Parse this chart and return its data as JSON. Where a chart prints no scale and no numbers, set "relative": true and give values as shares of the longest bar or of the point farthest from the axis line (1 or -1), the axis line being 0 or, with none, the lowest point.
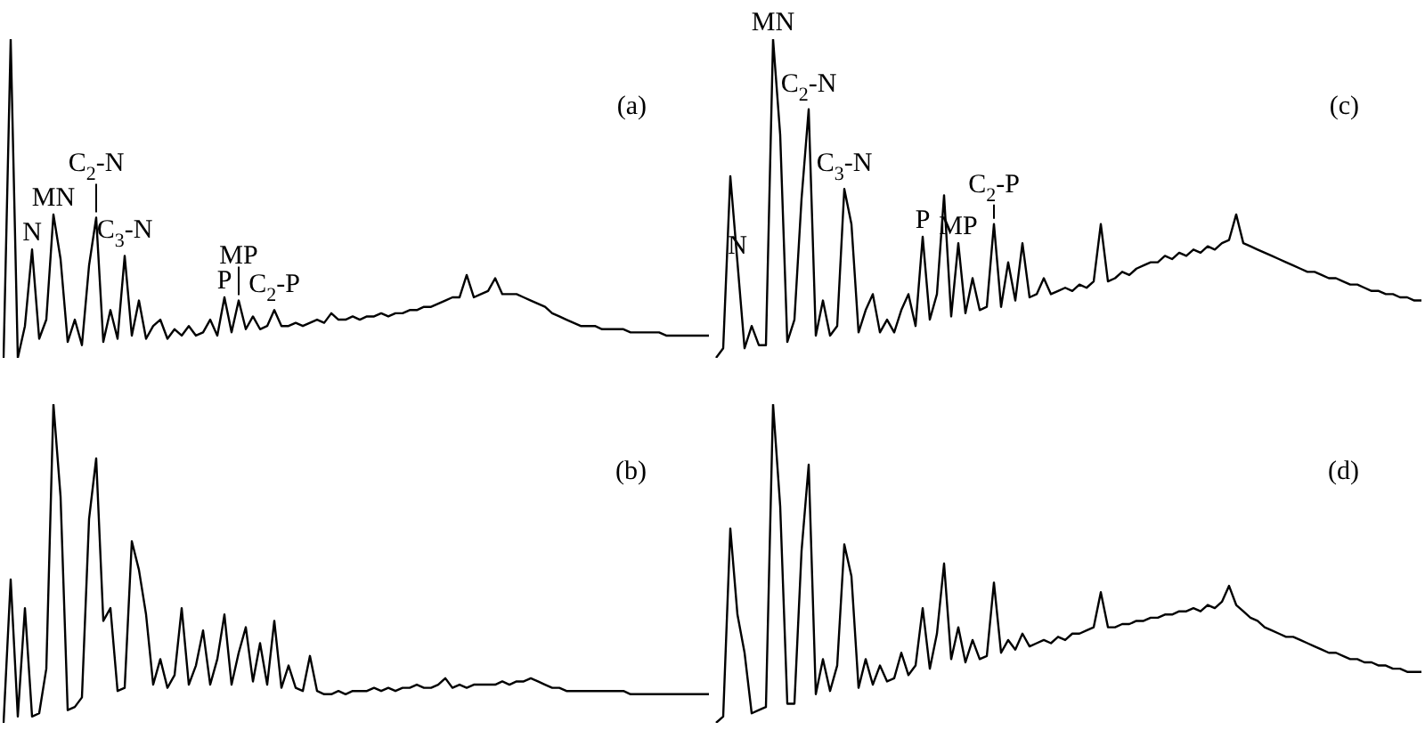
{
  "chart_data": [
    {
      "type": "line",
      "title": "(a)",
      "relative": true,
      "tick_labels": false,
      "color": "#000000",
      "categories": [
        null,
        null,
        null,
        null,
        null,
        null,
        null,
        null,
        null,
        null,
        null,
        null,
        null,
        null,
        null,
        null,
        null,
        null,
        null,
        null,
        null,
        null,
        null,
        null,
        null,
        null,
        null,
        null,
        null,
        null,
        null,
        null,
        null,
        null,
        null,
        null,
        null,
        null,
        null,
        null,
        null,
        null,
        null,
        null,
        null,
        null,
        null,
        null,
        null,
        null,
        null,
        null,
        null,
        null,
        null,
        null,
        null,
        null,
        null,
        null,
        null,
        null,
        null,
        null,
        null,
        null,
        null,
        null,
        null,
        null,
        null,
        null,
        null,
        null,
        null,
        null,
        null,
        null,
        null,
        null,
        null,
        null,
        null,
        null,
        null,
        null,
        null,
        null,
        null,
        null,
        null,
        null,
        null,
        null,
        null,
        null,
        null,
        null,
        null,
        null
      ],
      "values": [
        0,
        1.0,
        0,
        0.1,
        0.34,
        0.06,
        0.12,
        0.45,
        0.31,
        0.05,
        0.12,
        0.04,
        0.29,
        0.44,
        0.05,
        0.15,
        0.06,
        0.32,
        0.07,
        0.18,
        0.06,
        0.1,
        0.12,
        0.06,
        0.09,
        0.07,
        0.1,
        0.07,
        0.08,
        0.12,
        0.07,
        0.19,
        0.08,
        0.18,
        0.09,
        0.13,
        0.09,
        0.1,
        0.15,
        0.1,
        0.1,
        0.11,
        0.1,
        0.11,
        0.12,
        0.11,
        0.14,
        0.12,
        0.12,
        0.13,
        0.12,
        0.13,
        0.13,
        0.14,
        0.13,
        0.14,
        0.14,
        0.15,
        0.15,
        0.16,
        0.16,
        0.17,
        0.18,
        0.19,
        0.19,
        0.26,
        0.19,
        0.2,
        0.21,
        0.25,
        0.2,
        0.2,
        0.2,
        0.19,
        0.18,
        0.17,
        0.16,
        0.14,
        0.13,
        0.12,
        0.11,
        0.1,
        0.1,
        0.1,
        0.09,
        0.09,
        0.09,
        0.09,
        0.08,
        0.08,
        0.08,
        0.08,
        0.08,
        0.07,
        0.07,
        0.07,
        0.07,
        0.07,
        0.07,
        0.07
      ],
      "annotations": [
        {
          "text": "N",
          "y": 0.34
        },
        {
          "text": "MN",
          "y": 0.45
        },
        {
          "text": "C$_{2}$-N",
          "y": 0.44
        },
        {
          "text": "C$_{3}$-N",
          "y": 0.32
        },
        {
          "text": "P",
          "y": 0.19
        },
        {
          "text": "MP",
          "y": 0.18
        },
        {
          "text": "C$_{2}$-P",
          "y": 0.15
        }
      ]
    },
    {
      "type": "line",
      "title": "(c)",
      "relative": true,
      "tick_labels": false,
      "color": "#000000",
      "categories": [
        null,
        null,
        null,
        null,
        null,
        null,
        null,
        null,
        null,
        null,
        null,
        null,
        null,
        null,
        null,
        null,
        null,
        null,
        null,
        null,
        null,
        null,
        null,
        null,
        null,
        null,
        null,
        null,
        null,
        null,
        null,
        null,
        null,
        null,
        null,
        null,
        null,
        null,
        null,
        null,
        null,
        null,
        null,
        null,
        null,
        null,
        null,
        null,
        null,
        null,
        null,
        null,
        null,
        null,
        null,
        null,
        null,
        null,
        null,
        null,
        null,
        null,
        null,
        null,
        null,
        null,
        null,
        null,
        null,
        null,
        null,
        null,
        null,
        null,
        null,
        null,
        null,
        null,
        null,
        null,
        null,
        null,
        null,
        null,
        null,
        null,
        null,
        null,
        null,
        null,
        null,
        null,
        null,
        null,
        null,
        null,
        null,
        null,
        null,
        null
      ],
      "values": [
        0,
        0.03,
        0.57,
        0.3,
        0.03,
        0.1,
        0.04,
        0.04,
        1.0,
        0.7,
        0.05,
        0.12,
        0.5,
        0.78,
        0.07,
        0.18,
        0.07,
        0.1,
        0.53,
        0.42,
        0.08,
        0.15,
        0.2,
        0.08,
        0.12,
        0.08,
        0.15,
        0.2,
        0.1,
        0.38,
        0.12,
        0.2,
        0.51,
        0.13,
        0.36,
        0.14,
        0.25,
        0.15,
        0.16,
        0.42,
        0.16,
        0.3,
        0.18,
        0.36,
        0.19,
        0.2,
        0.25,
        0.2,
        0.21,
        0.22,
        0.21,
        0.23,
        0.22,
        0.24,
        0.42,
        0.24,
        0.25,
        0.27,
        0.26,
        0.28,
        0.29,
        0.3,
        0.3,
        0.32,
        0.31,
        0.33,
        0.32,
        0.34,
        0.33,
        0.35,
        0.34,
        0.36,
        0.37,
        0.45,
        0.36,
        0.35,
        0.34,
        0.33,
        0.32,
        0.31,
        0.3,
        0.29,
        0.28,
        0.27,
        0.27,
        0.26,
        0.25,
        0.25,
        0.24,
        0.23,
        0.23,
        0.22,
        0.21,
        0.21,
        0.2,
        0.2,
        0.19,
        0.19,
        0.18,
        0.18
      ],
      "annotations": [
        {
          "text": "N",
          "y": 0.3
        },
        {
          "text": "MN",
          "y": 1.0
        },
        {
          "text": "C$_{2}$-N",
          "y": 0.78
        },
        {
          "text": "C$_{3}$-N",
          "y": 0.53
        },
        {
          "text": "P",
          "y": 0.38
        },
        {
          "text": "MP",
          "y": 0.36
        },
        {
          "text": "C$_{2}$-P",
          "y": 0.42
        }
      ]
    },
    {
      "type": "line",
      "title": "(b)",
      "relative": true,
      "tick_labels": false,
      "color": "#000000",
      "categories": [
        null,
        null,
        null,
        null,
        null,
        null,
        null,
        null,
        null,
        null,
        null,
        null,
        null,
        null,
        null,
        null,
        null,
        null,
        null,
        null,
        null,
        null,
        null,
        null,
        null,
        null,
        null,
        null,
        null,
        null,
        null,
        null,
        null,
        null,
        null,
        null,
        null,
        null,
        null,
        null,
        null,
        null,
        null,
        null,
        null,
        null,
        null,
        null,
        null,
        null,
        null,
        null,
        null,
        null,
        null,
        null,
        null,
        null,
        null,
        null,
        null,
        null,
        null,
        null,
        null,
        null,
        null,
        null,
        null,
        null,
        null,
        null,
        null,
        null,
        null,
        null,
        null,
        null,
        null,
        null,
        null,
        null,
        null,
        null,
        null,
        null,
        null,
        null,
        null,
        null,
        null,
        null,
        null,
        null,
        null,
        null,
        null,
        null,
        null,
        null
      ],
      "values": [
        0,
        0.45,
        0.02,
        0.36,
        0.02,
        0.03,
        0.17,
        1.0,
        0.71,
        0.04,
        0.05,
        0.08,
        0.64,
        0.83,
        0.32,
        0.36,
        0.1,
        0.11,
        0.57,
        0.48,
        0.34,
        0.12,
        0.2,
        0.11,
        0.15,
        0.36,
        0.12,
        0.18,
        0.29,
        0.12,
        0.2,
        0.34,
        0.12,
        0.22,
        0.3,
        0.13,
        0.25,
        0.12,
        0.32,
        0.11,
        0.18,
        0.11,
        0.1,
        0.21,
        0.1,
        0.09,
        0.09,
        0.1,
        0.09,
        0.1,
        0.1,
        0.1,
        0.11,
        0.1,
        0.11,
        0.1,
        0.11,
        0.11,
        0.12,
        0.11,
        0.11,
        0.12,
        0.14,
        0.11,
        0.12,
        0.11,
        0.12,
        0.12,
        0.12,
        0.12,
        0.13,
        0.12,
        0.13,
        0.13,
        0.14,
        0.13,
        0.12,
        0.11,
        0.11,
        0.1,
        0.1,
        0.1,
        0.1,
        0.1,
        0.1,
        0.1,
        0.1,
        0.1,
        0.09,
        0.09,
        0.09,
        0.09,
        0.09,
        0.09,
        0.09,
        0.09,
        0.09,
        0.09,
        0.09,
        0.09
      ]
    },
    {
      "type": "line",
      "title": "(d)",
      "relative": true,
      "tick_labels": false,
      "color": "#000000",
      "categories": [
        null,
        null,
        null,
        null,
        null,
        null,
        null,
        null,
        null,
        null,
        null,
        null,
        null,
        null,
        null,
        null,
        null,
        null,
        null,
        null,
        null,
        null,
        null,
        null,
        null,
        null,
        null,
        null,
        null,
        null,
        null,
        null,
        null,
        null,
        null,
        null,
        null,
        null,
        null,
        null,
        null,
        null,
        null,
        null,
        null,
        null,
        null,
        null,
        null,
        null,
        null,
        null,
        null,
        null,
        null,
        null,
        null,
        null,
        null,
        null,
        null,
        null,
        null,
        null,
        null,
        null,
        null,
        null,
        null,
        null,
        null,
        null,
        null,
        null,
        null,
        null,
        null,
        null,
        null,
        null,
        null,
        null,
        null,
        null,
        null,
        null,
        null,
        null,
        null,
        null,
        null,
        null,
        null,
        null,
        null,
        null,
        null,
        null,
        null,
        null
      ],
      "values": [
        0,
        0.02,
        0.61,
        0.34,
        0.22,
        0.03,
        0.04,
        0.05,
        1.0,
        0.68,
        0.06,
        0.06,
        0.54,
        0.81,
        0.09,
        0.2,
        0.1,
        0.18,
        0.56,
        0.46,
        0.11,
        0.2,
        0.12,
        0.18,
        0.13,
        0.14,
        0.22,
        0.15,
        0.18,
        0.36,
        0.17,
        0.28,
        0.5,
        0.2,
        0.3,
        0.19,
        0.26,
        0.2,
        0.21,
        0.44,
        0.22,
        0.26,
        0.23,
        0.28,
        0.24,
        0.25,
        0.26,
        0.25,
        0.27,
        0.26,
        0.28,
        0.28,
        0.29,
        0.3,
        0.41,
        0.3,
        0.3,
        0.31,
        0.31,
        0.32,
        0.32,
        0.33,
        0.33,
        0.34,
        0.34,
        0.35,
        0.35,
        0.36,
        0.35,
        0.37,
        0.36,
        0.38,
        0.43,
        0.37,
        0.35,
        0.33,
        0.32,
        0.3,
        0.29,
        0.28,
        0.27,
        0.27,
        0.26,
        0.25,
        0.24,
        0.23,
        0.22,
        0.22,
        0.21,
        0.2,
        0.2,
        0.19,
        0.19,
        0.18,
        0.18,
        0.17,
        0.17,
        0.16,
        0.16,
        0.16
      ]
    }
  ]
}
